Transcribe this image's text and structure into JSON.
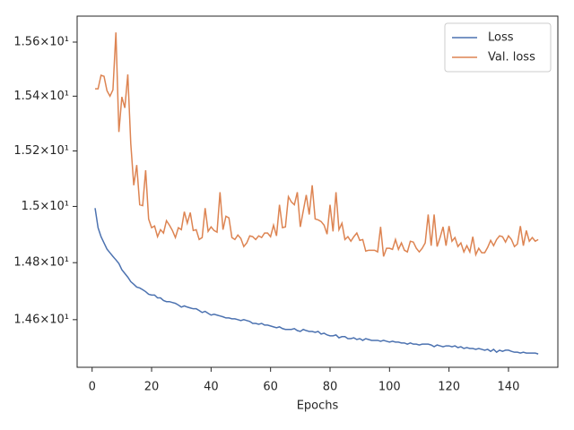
{
  "chart_data": {
    "type": "line",
    "xlabel": "Epochs",
    "log_y": true,
    "grid": false,
    "legend": "upper right",
    "xlim": [
      -5.04,
      156.6
    ],
    "xticks": [
      0,
      20,
      40,
      60,
      80,
      100,
      120,
      140
    ],
    "ylim": [
      14.435,
      15.697
    ],
    "yticks": [
      {
        "value": 14.6,
        "label": "1.46×10¹"
      },
      {
        "value": 14.8,
        "label": "1.48×10¹"
      },
      {
        "value": 15.0,
        "label": "1.5×10¹"
      },
      {
        "value": 15.2,
        "label": "1.52×10¹"
      },
      {
        "value": 15.4,
        "label": "1.54×10¹"
      },
      {
        "value": 15.6,
        "label": "1.56×10¹"
      }
    ],
    "x": [
      1,
      2,
      3,
      4,
      5,
      6,
      7,
      8,
      9,
      10,
      11,
      12,
      13,
      14,
      15,
      16,
      17,
      18,
      19,
      20,
      21,
      22,
      23,
      24,
      25,
      26,
      27,
      28,
      29,
      30,
      31,
      32,
      33,
      34,
      35,
      36,
      37,
      38,
      39,
      40,
      41,
      42,
      43,
      44,
      45,
      46,
      47,
      48,
      49,
      50,
      51,
      52,
      53,
      54,
      55,
      56,
      57,
      58,
      59,
      60,
      61,
      62,
      63,
      64,
      65,
      66,
      67,
      68,
      69,
      70,
      71,
      72,
      73,
      74,
      75,
      76,
      77,
      78,
      79,
      80,
      81,
      82,
      83,
      84,
      85,
      86,
      87,
      88,
      89,
      90,
      91,
      92,
      93,
      94,
      95,
      96,
      97,
      98,
      99,
      100,
      101,
      102,
      103,
      104,
      105,
      106,
      107,
      108,
      109,
      110,
      111,
      112,
      113,
      114,
      115,
      116,
      117,
      118,
      119,
      120,
      121,
      122,
      123,
      124,
      125,
      126,
      127,
      128,
      129,
      130,
      131,
      132,
      133,
      134,
      135,
      136,
      137,
      138,
      139,
      140,
      141,
      142,
      143,
      144,
      145,
      146,
      147,
      148,
      149,
      150
    ],
    "series": [
      {
        "name": "Loss",
        "color": "#4c72b0",
        "values": [
          14.994,
          14.924,
          14.892,
          14.87,
          14.848,
          14.835,
          14.822,
          14.81,
          14.797,
          14.775,
          14.762,
          14.749,
          14.733,
          14.724,
          14.714,
          14.711,
          14.705,
          14.698,
          14.689,
          14.686,
          14.686,
          14.676,
          14.676,
          14.667,
          14.663,
          14.663,
          14.66,
          14.657,
          14.651,
          14.644,
          14.648,
          14.644,
          14.641,
          14.638,
          14.638,
          14.632,
          14.625,
          14.629,
          14.622,
          14.616,
          14.619,
          14.616,
          14.613,
          14.61,
          14.606,
          14.606,
          14.603,
          14.603,
          14.6,
          14.597,
          14.6,
          14.597,
          14.594,
          14.587,
          14.587,
          14.584,
          14.587,
          14.581,
          14.581,
          14.578,
          14.575,
          14.572,
          14.575,
          14.569,
          14.566,
          14.566,
          14.566,
          14.569,
          14.562,
          14.559,
          14.566,
          14.562,
          14.559,
          14.559,
          14.556,
          14.559,
          14.55,
          14.553,
          14.547,
          14.544,
          14.544,
          14.547,
          14.537,
          14.541,
          14.541,
          14.534,
          14.534,
          14.537,
          14.531,
          14.534,
          14.528,
          14.534,
          14.531,
          14.528,
          14.528,
          14.528,
          14.525,
          14.528,
          14.525,
          14.522,
          14.525,
          14.522,
          14.522,
          14.519,
          14.519,
          14.515,
          14.519,
          14.515,
          14.515,
          14.512,
          14.515,
          14.515,
          14.515,
          14.512,
          14.506,
          14.512,
          14.509,
          14.506,
          14.509,
          14.509,
          14.506,
          14.509,
          14.503,
          14.506,
          14.5,
          14.503,
          14.5,
          14.5,
          14.497,
          14.5,
          14.497,
          14.494,
          14.497,
          14.49,
          14.497,
          14.487,
          14.494,
          14.49,
          14.494,
          14.494,
          14.49,
          14.487,
          14.487,
          14.484,
          14.487,
          14.484,
          14.484,
          14.484,
          14.484,
          14.481
        ]
      },
      {
        "name": "Val. loss",
        "color": "#dd8452",
        "values": [
          15.427,
          15.427,
          15.477,
          15.473,
          15.42,
          15.4,
          15.423,
          15.636,
          15.269,
          15.397,
          15.357,
          15.48,
          15.226,
          15.076,
          15.149,
          15.006,
          15.003,
          15.13,
          14.955,
          14.924,
          14.93,
          14.892,
          14.917,
          14.905,
          14.949,
          14.933,
          14.914,
          14.889,
          14.924,
          14.917,
          14.981,
          14.94,
          14.978,
          14.914,
          14.917,
          14.882,
          14.889,
          14.994,
          14.911,
          14.927,
          14.914,
          14.908,
          15.051,
          14.917,
          14.965,
          14.959,
          14.889,
          14.882,
          14.898,
          14.886,
          14.857,
          14.87,
          14.895,
          14.892,
          14.882,
          14.895,
          14.889,
          14.905,
          14.905,
          14.892,
          14.933,
          14.895,
          15.006,
          14.924,
          14.927,
          15.035,
          15.016,
          15.006,
          15.051,
          14.927,
          14.984,
          15.041,
          14.971,
          15.076,
          14.955,
          14.952,
          14.946,
          14.933,
          14.901,
          15.006,
          14.911,
          15.051,
          14.917,
          14.94,
          14.882,
          14.892,
          14.876,
          14.892,
          14.905,
          14.879,
          14.882,
          14.841,
          14.844,
          14.844,
          14.844,
          14.838,
          14.927,
          14.822,
          14.851,
          14.851,
          14.847,
          14.882,
          14.847,
          14.87,
          14.844,
          14.838,
          14.876,
          14.873,
          14.851,
          14.838,
          14.851,
          14.87,
          14.971,
          14.86,
          14.971,
          14.857,
          14.889,
          14.927,
          14.86,
          14.93,
          14.876,
          14.889,
          14.857,
          14.87,
          14.838,
          14.86,
          14.838,
          14.892,
          14.828,
          14.851,
          14.835,
          14.835,
          14.854,
          14.879,
          14.86,
          14.882,
          14.895,
          14.892,
          14.873,
          14.895,
          14.882,
          14.857,
          14.866,
          14.93,
          14.86,
          14.914,
          14.876,
          14.889,
          14.876,
          14.882
        ]
      }
    ]
  }
}
